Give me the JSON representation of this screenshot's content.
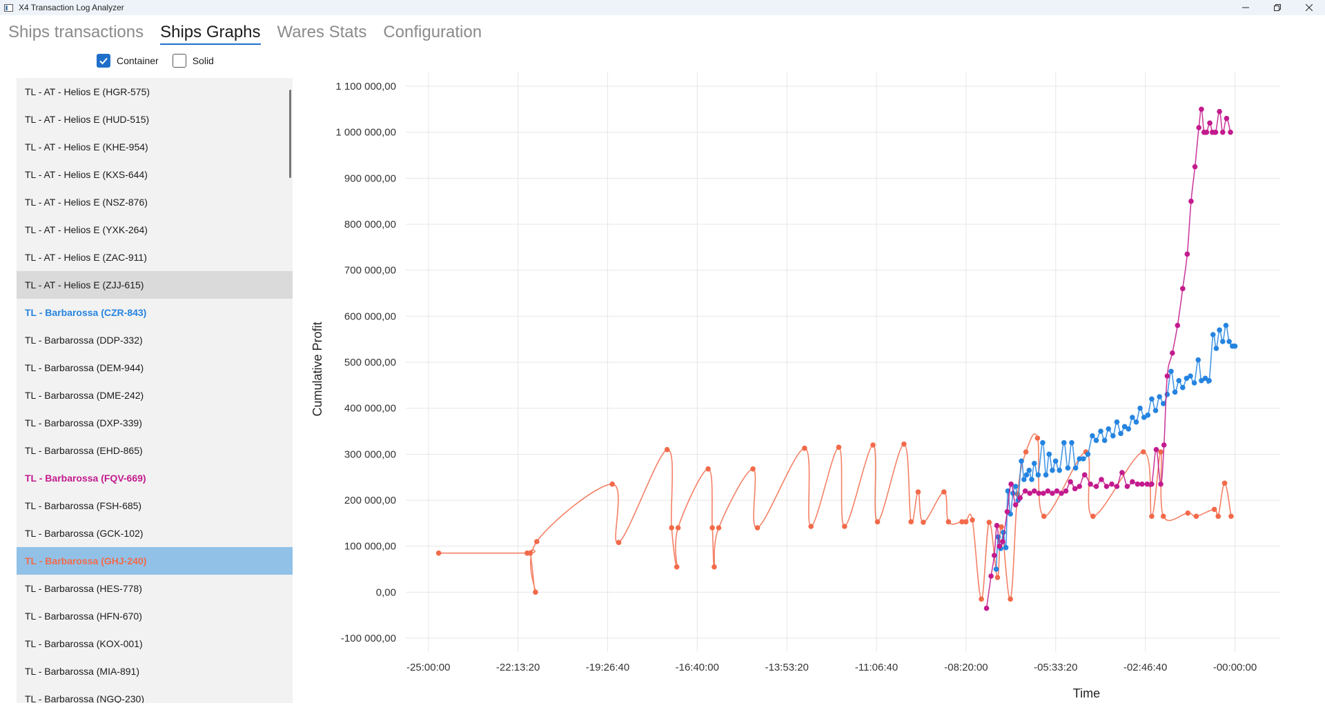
{
  "window": {
    "title": "X4 Transaction Log Analyzer"
  },
  "tabs": [
    {
      "label": "Ships transactions",
      "active": false
    },
    {
      "label": "Ships Graphs",
      "active": true
    },
    {
      "label": "Wares Stats",
      "active": false
    },
    {
      "label": "Configuration",
      "active": false
    }
  ],
  "filters": {
    "container": {
      "label": "Container",
      "checked": true
    },
    "solid": {
      "label": "Solid",
      "checked": false
    }
  },
  "ships": [
    {
      "name": "TL - AT - Helios E (HGR-575)"
    },
    {
      "name": "TL - AT - Helios E (HUD-515)"
    },
    {
      "name": "TL - AT - Helios E (KHE-954)"
    },
    {
      "name": "TL - AT - Helios E (KXS-644)"
    },
    {
      "name": "TL - AT - Helios E (NSZ-876)"
    },
    {
      "name": "TL - AT - Helios E (YXK-264)"
    },
    {
      "name": "TL - AT - Helios E (ZAC-911)"
    },
    {
      "name": "TL - AT - Helios E (ZJJ-615)",
      "state": "hover"
    },
    {
      "name": "TL - Barbarossa (CZR-843)",
      "color": "blue"
    },
    {
      "name": "TL - Barbarossa (DDP-332)"
    },
    {
      "name": "TL - Barbarossa (DEM-944)"
    },
    {
      "name": "TL - Barbarossa (DME-242)"
    },
    {
      "name": "TL - Barbarossa (DXP-339)"
    },
    {
      "name": "TL - Barbarossa (EHD-865)"
    },
    {
      "name": "TL - Barbarossa (FQV-669)",
      "color": "magenta"
    },
    {
      "name": "TL - Barbarossa (FSH-685)"
    },
    {
      "name": "TL - Barbarossa (GCK-102)"
    },
    {
      "name": "TL - Barbarossa (GHJ-240)",
      "color": "orange",
      "state": "selected"
    },
    {
      "name": "TL - Barbarossa (HES-778)"
    },
    {
      "name": "TL - Barbarossa (HFN-670)"
    },
    {
      "name": "TL - Barbarossa (KOX-001)"
    },
    {
      "name": "TL - Barbarossa (MIA-891)"
    },
    {
      "name": "TL - Barbarossa (NGQ-230)"
    }
  ],
  "colors": {
    "accent": "#1f6fc9",
    "blue": "#2584e0",
    "magenta": "#c31a8d",
    "orange": "#f26a4a"
  },
  "chart_data": {
    "type": "line",
    "xlabel": "Time",
    "ylabel": "Cumulative Profit",
    "x_unit": "hours (negative = time before now)",
    "xlim": [
      -25.7,
      1.4
    ],
    "ylim": [
      -130000,
      1130000
    ],
    "x_ticks": [
      {
        "v": -25,
        "label": "-25:00:00"
      },
      {
        "v": -22.222,
        "label": "-22:13:20"
      },
      {
        "v": -19.444,
        "label": "-19:26:40"
      },
      {
        "v": -16.667,
        "label": "-16:40:00"
      },
      {
        "v": -13.889,
        "label": "-13:53:20"
      },
      {
        "v": -11.111,
        "label": "-11:06:40"
      },
      {
        "v": -8.333,
        "label": "-08:20:00"
      },
      {
        "v": -5.556,
        "label": "-05:33:20"
      },
      {
        "v": -2.778,
        "label": "-02:46:40"
      },
      {
        "v": 0,
        "label": "-00:00:00"
      }
    ],
    "y_ticks": [
      {
        "v": 1100000,
        "label": "1 100 000,00"
      },
      {
        "v": 1000000,
        "label": "1 000 000,00"
      },
      {
        "v": 900000,
        "label": "900 000,00"
      },
      {
        "v": 800000,
        "label": "800 000,00"
      },
      {
        "v": 700000,
        "label": "700 000,00"
      },
      {
        "v": 600000,
        "label": "600 000,00"
      },
      {
        "v": 500000,
        "label": "500 000,00"
      },
      {
        "v": 400000,
        "label": "400 000,00"
      },
      {
        "v": 300000,
        "label": "300 000,00"
      },
      {
        "v": 200000,
        "label": "200 000,00"
      },
      {
        "v": 100000,
        "label": "100 000,00"
      },
      {
        "v": 0,
        "label": "0,00"
      },
      {
        "v": -100000,
        "label": "-100 000,00"
      }
    ],
    "grid": true,
    "series": [
      {
        "color": "#f26a4a",
        "points": [
          [
            -24.68,
            85000
          ],
          [
            -21.94,
            85000
          ],
          [
            -21.84,
            85000
          ],
          [
            -21.68,
            0
          ],
          [
            -21.64,
            110000
          ],
          [
            -19.3,
            235000
          ],
          [
            -19.1,
            108000
          ],
          [
            -17.6,
            310000
          ],
          [
            -17.46,
            140000
          ],
          [
            -17.3,
            55000
          ],
          [
            -17.26,
            140000
          ],
          [
            -16.33,
            268000
          ],
          [
            -16.2,
            140000
          ],
          [
            -16.14,
            55000
          ],
          [
            -16.0,
            140000
          ],
          [
            -14.94,
            268000
          ],
          [
            -14.8,
            140000
          ],
          [
            -13.34,
            313000
          ],
          [
            -13.14,
            143000
          ],
          [
            -12.28,
            315000
          ],
          [
            -12.1,
            143000
          ],
          [
            -11.22,
            320000
          ],
          [
            -11.08,
            153000
          ],
          [
            -10.26,
            322000
          ],
          [
            -10.04,
            153000
          ],
          [
            -9.82,
            218000
          ],
          [
            -9.66,
            152000
          ],
          [
            -9.02,
            218000
          ],
          [
            -8.88,
            153000
          ],
          [
            -8.46,
            153000
          ],
          [
            -8.34,
            153000
          ],
          [
            -8.14,
            157000
          ],
          [
            -7.86,
            -15000
          ],
          [
            -7.62,
            152000
          ],
          [
            -7.36,
            32000
          ],
          [
            -7.24,
            142000
          ],
          [
            -6.96,
            -15000
          ],
          [
            -6.74,
            213000
          ],
          [
            -6.48,
            305000
          ],
          [
            -6.12,
            335000
          ],
          [
            -5.92,
            165000
          ],
          [
            -4.62,
            305000
          ],
          [
            -4.4,
            165000
          ],
          [
            -2.84,
            305000
          ],
          [
            -2.58,
            165000
          ],
          [
            -2.3,
            305000
          ],
          [
            -2.22,
            165000
          ],
          [
            -1.46,
            172000
          ],
          [
            -1.2,
            165000
          ],
          [
            -0.64,
            180000
          ],
          [
            -0.52,
            165000
          ],
          [
            -0.32,
            237000
          ],
          [
            -0.12,
            165000
          ]
        ]
      },
      {
        "color": "#2584e0",
        "points": [
          [
            -7.4,
            50000
          ],
          [
            -7.34,
            120000
          ],
          [
            -7.26,
            95000
          ],
          [
            -7.18,
            130000
          ],
          [
            -7.1,
            97000
          ],
          [
            -7.04,
            220000
          ],
          [
            -6.96,
            170000
          ],
          [
            -6.88,
            215000
          ],
          [
            -6.8,
            230000
          ],
          [
            -6.72,
            200000
          ],
          [
            -6.62,
            285000
          ],
          [
            -6.54,
            245000
          ],
          [
            -6.46,
            255000
          ],
          [
            -6.38,
            265000
          ],
          [
            -6.3,
            245000
          ],
          [
            -6.22,
            280000
          ],
          [
            -6.1,
            255000
          ],
          [
            -5.96,
            325000
          ],
          [
            -5.86,
            255000
          ],
          [
            -5.76,
            300000
          ],
          [
            -5.66,
            265000
          ],
          [
            -5.56,
            285000
          ],
          [
            -5.44,
            265000
          ],
          [
            -5.3,
            325000
          ],
          [
            -5.18,
            270000
          ],
          [
            -5.06,
            325000
          ],
          [
            -4.94,
            270000
          ],
          [
            -4.82,
            290000
          ],
          [
            -4.7,
            290000
          ],
          [
            -4.56,
            300000
          ],
          [
            -4.42,
            340000
          ],
          [
            -4.3,
            330000
          ],
          [
            -4.16,
            350000
          ],
          [
            -4.04,
            330000
          ],
          [
            -3.92,
            355000
          ],
          [
            -3.78,
            340000
          ],
          [
            -3.66,
            370000
          ],
          [
            -3.54,
            345000
          ],
          [
            -3.42,
            360000
          ],
          [
            -3.3,
            355000
          ],
          [
            -3.18,
            380000
          ],
          [
            -3.06,
            370000
          ],
          [
            -2.94,
            400000
          ],
          [
            -2.82,
            380000
          ],
          [
            -2.7,
            385000
          ],
          [
            -2.58,
            420000
          ],
          [
            -2.46,
            395000
          ],
          [
            -2.34,
            425000
          ],
          [
            -2.22,
            410000
          ],
          [
            -2.1,
            430000
          ],
          [
            -1.98,
            480000
          ],
          [
            -1.86,
            435000
          ],
          [
            -1.74,
            460000
          ],
          [
            -1.62,
            445000
          ],
          [
            -1.5,
            465000
          ],
          [
            -1.38,
            470000
          ],
          [
            -1.26,
            455000
          ],
          [
            -1.14,
            505000
          ],
          [
            -1.04,
            460000
          ],
          [
            -0.92,
            465000
          ],
          [
            -0.8,
            460000
          ],
          [
            -0.68,
            560000
          ],
          [
            -0.58,
            530000
          ],
          [
            -0.48,
            570000
          ],
          [
            -0.38,
            545000
          ],
          [
            -0.28,
            580000
          ],
          [
            -0.18,
            545000
          ],
          [
            -0.08,
            535000
          ],
          [
            0.0,
            535000
          ]
        ]
      },
      {
        "color": "#c31a8d",
        "points": [
          [
            -7.7,
            -35000
          ],
          [
            -7.56,
            35000
          ],
          [
            -7.46,
            80000
          ],
          [
            -7.38,
            145000
          ],
          [
            -7.3,
            100000
          ],
          [
            -7.2,
            110000
          ],
          [
            -7.06,
            175000
          ],
          [
            -6.94,
            235000
          ],
          [
            -6.8,
            190000
          ],
          [
            -6.66,
            205000
          ],
          [
            -6.5,
            220000
          ],
          [
            -6.36,
            215000
          ],
          [
            -6.22,
            220000
          ],
          [
            -6.08,
            215000
          ],
          [
            -5.94,
            215000
          ],
          [
            -5.8,
            220000
          ],
          [
            -5.66,
            215000
          ],
          [
            -5.52,
            220000
          ],
          [
            -5.38,
            215000
          ],
          [
            -5.24,
            220000
          ],
          [
            -5.1,
            240000
          ],
          [
            -4.96,
            225000
          ],
          [
            -4.82,
            230000
          ],
          [
            -4.66,
            255000
          ],
          [
            -4.48,
            235000
          ],
          [
            -4.3,
            230000
          ],
          [
            -4.14,
            245000
          ],
          [
            -3.98,
            230000
          ],
          [
            -3.82,
            235000
          ],
          [
            -3.66,
            230000
          ],
          [
            -3.5,
            260000
          ],
          [
            -3.34,
            230000
          ],
          [
            -3.18,
            240000
          ],
          [
            -3.02,
            235000
          ],
          [
            -2.88,
            235000
          ],
          [
            -2.72,
            235000
          ],
          [
            -2.58,
            235000
          ],
          [
            -2.44,
            310000
          ],
          [
            -2.3,
            235000
          ],
          [
            -2.2,
            320000
          ],
          [
            -2.1,
            470000
          ],
          [
            -1.94,
            520000
          ],
          [
            -1.78,
            580000
          ],
          [
            -1.62,
            660000
          ],
          [
            -1.48,
            735000
          ],
          [
            -1.36,
            850000
          ],
          [
            -1.24,
            925000
          ],
          [
            -1.12,
            1010000
          ],
          [
            -1.04,
            1050000
          ],
          [
            -0.96,
            1000000
          ],
          [
            -0.88,
            1000000
          ],
          [
            -0.78,
            1020000
          ],
          [
            -0.7,
            1000000
          ],
          [
            -0.6,
            1000000
          ],
          [
            -0.48,
            1045000
          ],
          [
            -0.38,
            1000000
          ],
          [
            -0.26,
            1030000
          ],
          [
            -0.14,
            1000000
          ]
        ]
      }
    ]
  }
}
